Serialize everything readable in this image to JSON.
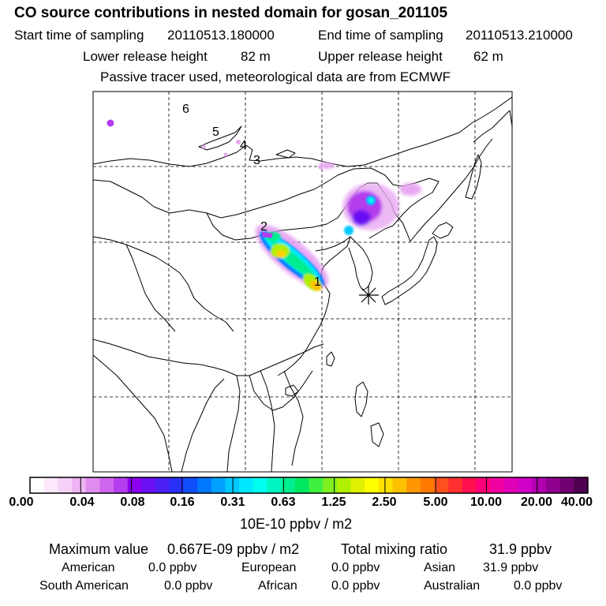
{
  "header": {
    "title": "CO  source contributions in nested domain for gosan_201105",
    "start_label": "Start time of sampling",
    "start_value": "20110513.180000",
    "end_label": "End time of sampling",
    "end_value": "20110513.210000",
    "lower_label": "Lower release height",
    "lower_value": "82 m",
    "upper_label": "Upper release height",
    "upper_value": "62 m",
    "note": "Passive tracer used, meteorological data are from ECMWF"
  },
  "map": {
    "receptor": "receptor-asterisk",
    "trajectory_labels": [
      "1",
      "2",
      "3",
      "4",
      "5",
      "6"
    ]
  },
  "colorbar": {
    "unit": "10E-10 ppbv / m2",
    "tick_labels": [
      "0.00",
      "0.04",
      "0.08",
      "0.16",
      "0.31",
      "0.63",
      "1.25",
      "2.50",
      "5.00",
      "10.00",
      "20.00",
      "40.00"
    ],
    "colors": [
      "#ffffff",
      "#fbe8fb",
      "#f5d0f7",
      "#eeb4f3",
      "#e08df0",
      "#cf66ee",
      "#b43ded",
      "#8a00ee",
      "#6a10f2",
      "#4a20f5",
      "#2a30f8",
      "#1050fb",
      "#0078ff",
      "#00a0ff",
      "#00c8ff",
      "#00e8ff",
      "#00ffee",
      "#00f5c0",
      "#00ee90",
      "#00e860",
      "#40f040",
      "#80f020",
      "#b0f000",
      "#e0f000",
      "#ffff00",
      "#ffe000",
      "#ffc000",
      "#ff9800",
      "#ff7800",
      "#ff5020",
      "#ff3030",
      "#ff1050",
      "#ff0078",
      "#f000a0",
      "#e000b8",
      "#d000c8",
      "#b000b0",
      "#900090",
      "#700070",
      "#500050"
    ]
  },
  "stats": {
    "max_label": "Maximum value",
    "max_value": "0.667E-09 ppbv / m2",
    "total_label": "Total mixing ratio",
    "total_value": "31.9 ppbv",
    "regions": [
      {
        "name": "American",
        "value": "0.0 ppbv"
      },
      {
        "name": "European",
        "value": "0.0 ppbv"
      },
      {
        "name": "Asian",
        "value": "31.9 ppbv"
      },
      {
        "name": "South American",
        "value": "0.0 ppbv"
      },
      {
        "name": "African",
        "value": "0.0 ppbv"
      },
      {
        "name": "Australian",
        "value": "0.0 ppbv"
      }
    ]
  }
}
